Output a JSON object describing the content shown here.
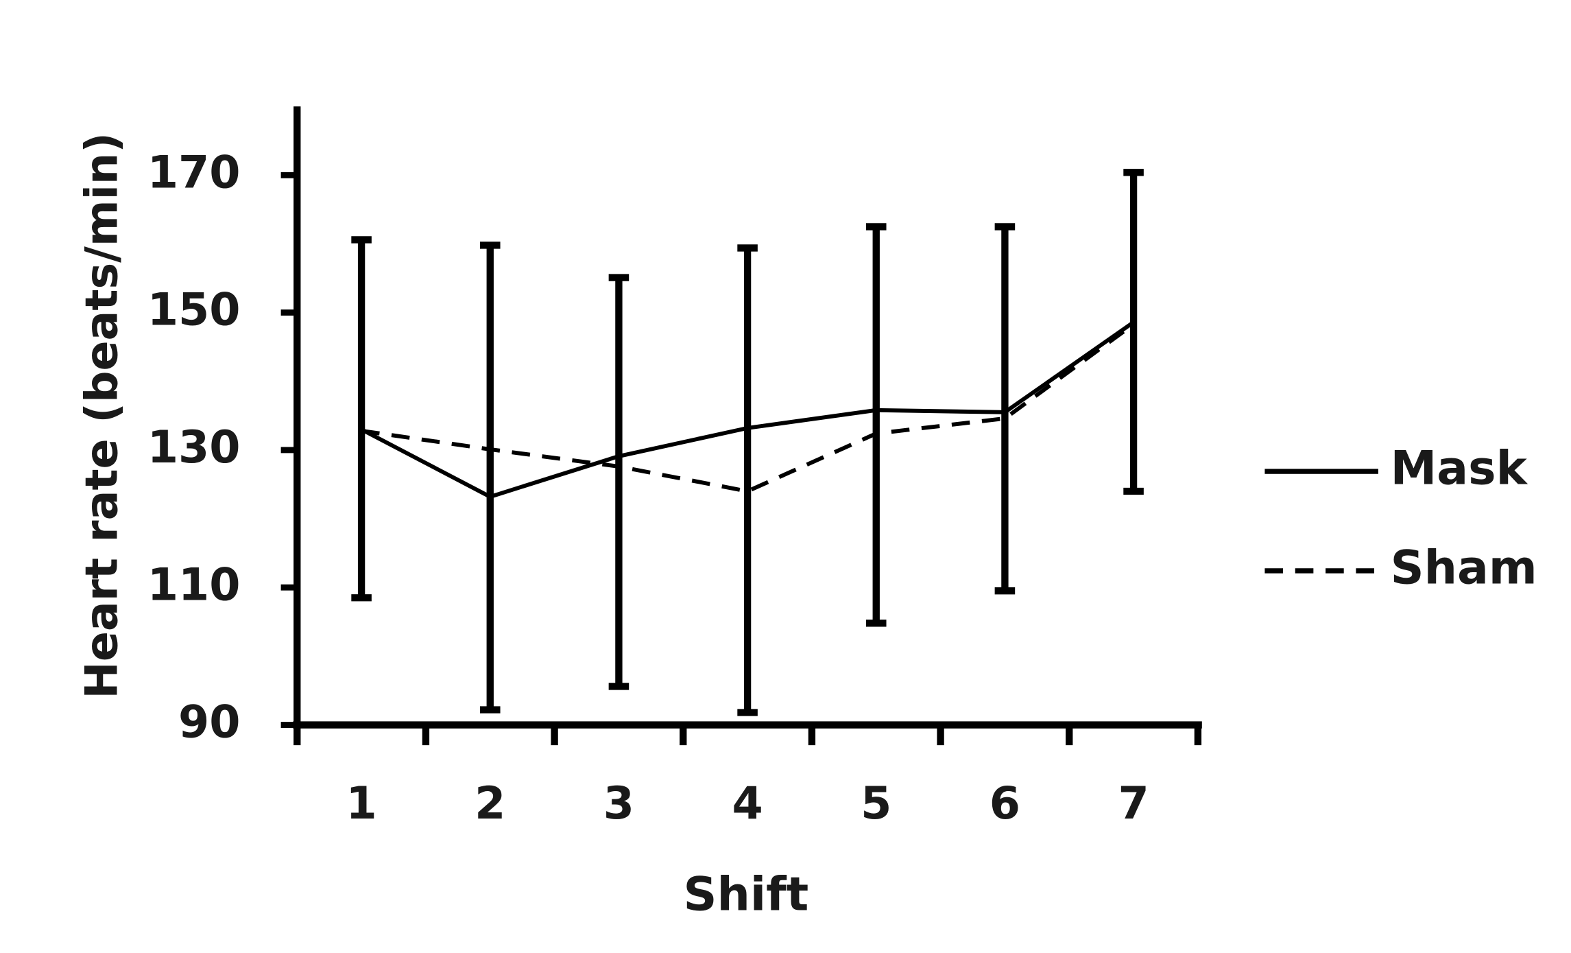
{
  "chart_data": {
    "type": "line",
    "y_label": "Heart rate (beats/min)",
    "x_label": "Shift",
    "categories": [
      "1",
      "2",
      "3",
      "4",
      "5",
      "6",
      "7"
    ],
    "series": [
      {
        "name": "Mask",
        "color": "#000000",
        "dash": "solid",
        "values": [
          133,
          123.2,
          129.1,
          133.2,
          135.8,
          135.5,
          148.6
        ]
      },
      {
        "name": "Sham",
        "color": "#000000",
        "dash": "dashed",
        "values": [
          132.8,
          130.1,
          127.6,
          124,
          132.4,
          134.6,
          148.3
        ]
      }
    ],
    "error_bars": {
      "low": [
        108.5,
        92.2,
        95.6,
        91.8,
        104.8,
        109.5,
        124
      ],
      "high": [
        160.6,
        159.8,
        155.1,
        159.4,
        162.5,
        162.5,
        170.4
      ]
    },
    "ylim": [
      90,
      180
    ],
    "yticks": [
      90,
      110,
      130,
      150,
      170
    ],
    "legend": "right"
  }
}
